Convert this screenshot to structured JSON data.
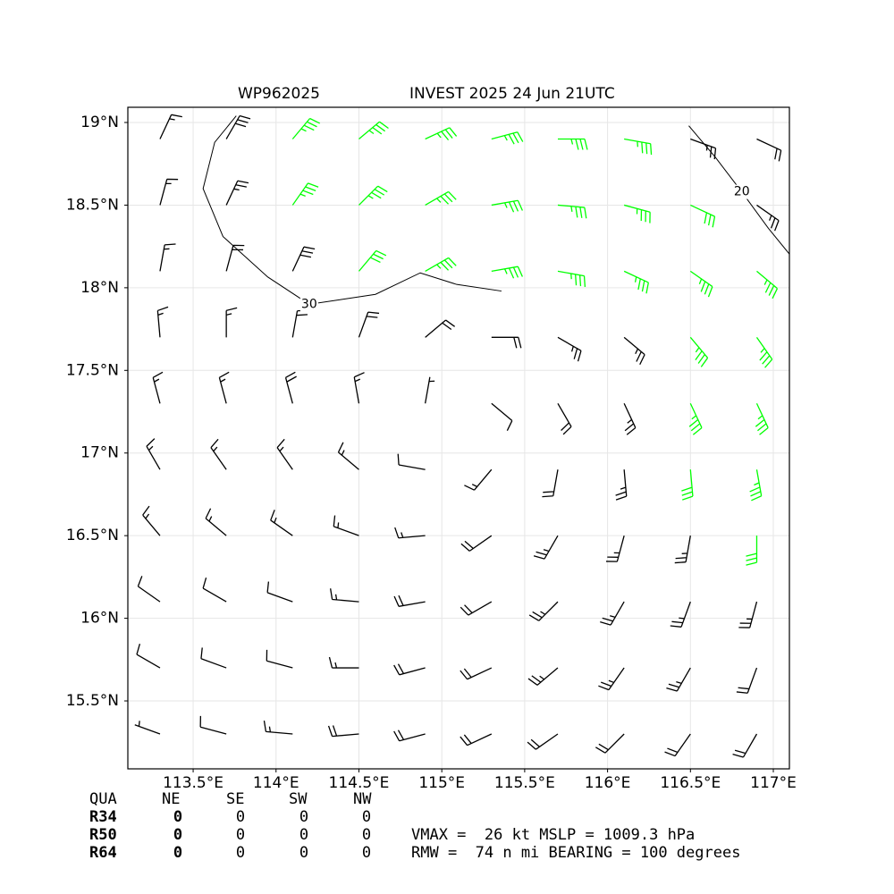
{
  "chart_data": {
    "type": "barbs",
    "title": "WP962025",
    "subtitle": "INVEST 2025 24 Jun 21UTC",
    "xlim": [
      113.106,
      117.097
    ],
    "ylim": [
      15.089,
      19.092
    ],
    "xticks": [
      {
        "value": 113.5,
        "label": "113.5°E"
      },
      {
        "value": 114,
        "label": "114°E"
      },
      {
        "value": 114.5,
        "label": "114.5°E"
      },
      {
        "value": 115,
        "label": "115°E"
      },
      {
        "value": 115.5,
        "label": "115.5°E"
      },
      {
        "value": 116,
        "label": "116°E"
      },
      {
        "value": 116.5,
        "label": "116.5°E"
      },
      {
        "value": 117,
        "label": "117°E"
      }
    ],
    "yticks": [
      {
        "value": 15.5,
        "label": "15.5°N"
      },
      {
        "value": 16,
        "label": "16°N"
      },
      {
        "value": 16.5,
        "label": "16.5°N"
      },
      {
        "value": 17,
        "label": "17°N"
      },
      {
        "value": 17.5,
        "label": "17.5°N"
      },
      {
        "value": 18,
        "label": "18°N"
      },
      {
        "value": 18.5,
        "label": "18.5°N"
      },
      {
        "value": 19,
        "label": "19°N"
      }
    ],
    "grid": true,
    "color": "#000000",
    "highlight_color": "#00ff00",
    "highlight_speed": 34,
    "barbs": {
      "lon": [
        113.3,
        113.7,
        114.1,
        114.5,
        114.9,
        115.3,
        115.7,
        116.1,
        116.5,
        116.9
      ],
      "lat": [
        18.9,
        18.5,
        18.1,
        17.7,
        17.3,
        16.9,
        16.5,
        16.1,
        15.7,
        15.3
      ],
      "speed": [
        [
          15,
          30,
          36,
          38,
          38,
          38,
          38,
          36,
          25,
          20
        ],
        [
          15,
          28,
          36,
          38,
          38,
          38,
          38,
          36,
          34,
          25
        ],
        [
          15,
          22,
          30,
          34,
          36,
          36,
          36,
          36,
          36,
          35
        ],
        [
          15,
          18,
          22,
          24,
          22,
          22,
          25,
          28,
          36,
          38
        ],
        [
          15,
          18,
          20,
          18,
          8,
          10,
          22,
          26,
          36,
          38
        ],
        [
          15,
          18,
          18,
          15,
          12,
          15,
          22,
          26,
          34,
          38
        ],
        [
          15,
          15,
          15,
          15,
          18,
          22,
          25,
          26,
          28,
          34
        ],
        [
          12,
          12,
          12,
          15,
          20,
          24,
          26,
          26,
          26,
          26
        ],
        [
          10,
          10,
          12,
          18,
          22,
          24,
          25,
          25,
          25,
          24
        ],
        [
          8,
          10,
          15,
          20,
          22,
          24,
          24,
          24,
          24,
          22
        ]
      ],
      "direction": [
        [
          25,
          30,
          40,
          50,
          65,
          75,
          90,
          100,
          110,
          115
        ],
        [
          15,
          25,
          35,
          45,
          60,
          80,
          95,
          105,
          115,
          125
        ],
        [
          10,
          15,
          25,
          40,
          60,
          80,
          100,
          115,
          125,
          130
        ],
        [
          355,
          0,
          10,
          20,
          50,
          90,
          120,
          130,
          140,
          145
        ],
        [
          345,
          345,
          345,
          350,
          10,
          130,
          150,
          155,
          155,
          155
        ],
        [
          330,
          325,
          325,
          310,
          280,
          220,
          190,
          175,
          175,
          170
        ],
        [
          320,
          310,
          305,
          290,
          265,
          235,
          210,
          195,
          190,
          180
        ],
        [
          305,
          300,
          290,
          275,
          260,
          240,
          225,
          210,
          200,
          195
        ],
        [
          300,
          290,
          285,
          270,
          255,
          245,
          230,
          215,
          210,
          200
        ],
        [
          290,
          285,
          275,
          265,
          255,
          245,
          235,
          225,
          215,
          210
        ]
      ]
    },
    "contours": [
      {
        "level": 30,
        "lon": [
          113.76,
          113.63,
          113.56,
          113.68,
          113.95,
          114.2,
          114.6,
          114.87,
          115.09,
          115.36
        ],
        "lat": [
          19.04,
          18.88,
          18.6,
          18.31,
          18.065,
          17.9,
          17.96,
          18.09,
          18.02,
          17.98
        ]
      },
      {
        "level": 20,
        "lon": [
          116.49,
          116.65,
          116.81,
          116.97,
          117.1
        ],
        "lat": [
          18.98,
          18.79,
          18.58,
          18.36,
          18.2
        ]
      }
    ]
  },
  "summary": {
    "header": [
      "QUA",
      "NE",
      "SE",
      "SW",
      "NW"
    ],
    "rows": [
      {
        "label": "R34",
        "values": [
          0,
          0,
          0,
          0
        ]
      },
      {
        "label": "R50",
        "values": [
          0,
          0,
          0,
          0
        ]
      },
      {
        "label": "R64",
        "values": [
          0,
          0,
          0,
          0
        ]
      }
    ],
    "info": [
      "VMAX =  26 kt MSLP = 1009.3 hPa",
      "RMW =  74 n mi BEARING = 100 degrees"
    ]
  }
}
